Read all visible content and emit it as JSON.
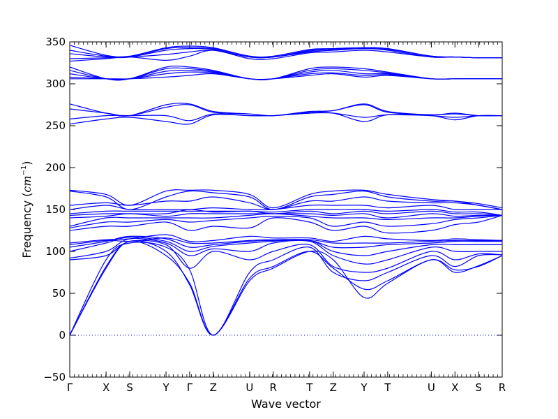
{
  "chart_data": {
    "type": "line",
    "xlabel": "Wave vector",
    "ylabel": {
      "text": "Frequency (",
      "unit": "cm",
      "sup": "−1",
      "close": ")"
    },
    "ylim": [
      -50,
      350
    ],
    "yticks": [
      -50,
      0,
      50,
      100,
      150,
      200,
      250,
      300,
      350
    ],
    "series_color": "#0000ff",
    "zero_line": {
      "y": 0,
      "style": "dotted"
    },
    "kpoints": [
      {
        "label": "Γ",
        "x": 0
      },
      {
        "label": "X",
        "x": 1
      },
      {
        "label": "S",
        "x": 1.65
      },
      {
        "label": "Y",
        "x": 2.65
      },
      {
        "label": "Γ",
        "x": 3.3
      },
      {
        "label": "Z",
        "x": 3.95
      },
      {
        "label": "U",
        "x": 4.95
      },
      {
        "label": "R",
        "x": 5.6
      },
      {
        "label": "T",
        "x": 6.6
      },
      {
        "label": "Z",
        "x": 7.25
      },
      {
        "label": "Y",
        "x": 8.1
      },
      {
        "label": "T",
        "x": 8.75
      },
      {
        "label": "U",
        "x": 9.95
      },
      {
        "label": "X",
        "x": 10.6
      },
      {
        "label": "S",
        "x": 11.25
      },
      {
        "label": "R",
        "x": 11.9
      }
    ],
    "bands": [
      {
        "values": [
          0,
          80,
          112,
          95,
          62,
          0,
          65,
          80,
          100,
          90,
          45,
          62,
          90,
          75,
          83,
          95
        ]
      },
      {
        "values": [
          0,
          82,
          112,
          100,
          60,
          0,
          68,
          82,
          100,
          80,
          55,
          65,
          90,
          78,
          82,
          95
        ]
      },
      {
        "values": [
          0,
          90,
          110,
          105,
          78,
          0,
          75,
          90,
          105,
          75,
          65,
          75,
          95,
          82,
          95,
          96
        ]
      },
      {
        "values": [
          90,
          95,
          112,
          108,
          80,
          100,
          90,
          100,
          108,
          82,
          75,
          80,
          100,
          90,
          97,
          96
        ]
      },
      {
        "values": [
          92,
          100,
          115,
          110,
          95,
          103,
          100,
          110,
          112,
          95,
          85,
          90,
          105,
          100,
          100,
          100
        ]
      },
      {
        "values": [
          100,
          110,
          117,
          112,
          100,
          106,
          110,
          112,
          113,
          100,
          95,
          100,
          108,
          108,
          108,
          108
        ]
      },
      {
        "values": [
          105,
          112,
          118,
          115,
          105,
          108,
          112,
          113,
          113,
          105,
          105,
          108,
          110,
          112,
          112,
          112
        ]
      },
      {
        "values": [
          108,
          113,
          112,
          116,
          110,
          110,
          113,
          114,
          114,
          110,
          110,
          110,
          112,
          113,
          113,
          113
        ]
      },
      {
        "values": [
          110,
          114,
          115,
          120,
          112,
          113,
          118,
          116,
          116,
          112,
          118,
          115,
          113,
          115,
          114,
          113
        ]
      },
      {
        "values": [
          125,
          130,
          130,
          135,
          125,
          130,
          128,
          140,
          135,
          125,
          130,
          122,
          125,
          132,
          135,
          143
        ]
      },
      {
        "values": [
          128,
          135,
          135,
          138,
          135,
          137,
          140,
          142,
          140,
          130,
          135,
          130,
          133,
          138,
          140,
          143
        ]
      },
      {
        "values": [
          130,
          140,
          140,
          140,
          140,
          140,
          143,
          145,
          142,
          140,
          140,
          138,
          140,
          140,
          142,
          143
        ]
      },
      {
        "values": [
          140,
          142,
          145,
          142,
          145,
          145,
          145,
          145,
          145,
          143,
          145,
          140,
          145,
          142,
          143,
          143
        ]
      },
      {
        "values": [
          143,
          145,
          145,
          145,
          150,
          147,
          148,
          145,
          148,
          145,
          148,
          145,
          148,
          145,
          145,
          143
        ]
      },
      {
        "values": [
          145,
          148,
          148,
          148,
          148,
          148,
          148,
          147,
          150,
          150,
          150,
          148,
          150,
          147,
          147,
          143
        ]
      },
      {
        "values": [
          150,
          155,
          150,
          150,
          150,
          152,
          150,
          150,
          155,
          155,
          155,
          152,
          155,
          150,
          150,
          150
        ]
      },
      {
        "values": [
          155,
          158,
          155,
          160,
          160,
          165,
          158,
          150,
          160,
          160,
          165,
          160,
          158,
          158,
          155,
          150
        ]
      },
      {
        "values": [
          172,
          165,
          150,
          165,
          172,
          170,
          165,
          150,
          165,
          168,
          172,
          165,
          160,
          160,
          155,
          150
        ]
      },
      {
        "values": [
          173,
          168,
          155,
          172,
          173,
          173,
          168,
          152,
          168,
          172,
          173,
          168,
          162,
          160,
          157,
          152
        ]
      },
      {
        "values": [
          252,
          258,
          260,
          255,
          252,
          263,
          262,
          262,
          265,
          265,
          255,
          263,
          262,
          257,
          262,
          262
        ]
      },
      {
        "values": [
          258,
          262,
          262,
          262,
          256,
          264,
          262,
          262,
          265,
          265,
          260,
          263,
          262,
          260,
          262,
          262
        ]
      },
      {
        "values": [
          270,
          265,
          262,
          272,
          275,
          266,
          264,
          262,
          266,
          268,
          275,
          266,
          263,
          264,
          262,
          262
        ]
      },
      {
        "values": [
          276,
          265,
          262,
          275,
          276,
          267,
          264,
          262,
          267,
          268,
          276,
          267,
          263,
          265,
          262,
          262
        ]
      },
      {
        "values": [
          306,
          306,
          306,
          308,
          310,
          312,
          306,
          306,
          310,
          312,
          308,
          310,
          306,
          306,
          306,
          306
        ]
      },
      {
        "values": [
          308,
          306,
          306,
          312,
          314,
          313,
          306,
          306,
          312,
          313,
          310,
          311,
          306,
          306,
          306,
          306
        ]
      },
      {
        "values": [
          312,
          306,
          306,
          315,
          316,
          314,
          306,
          306,
          314,
          316,
          312,
          312,
          306,
          306,
          306,
          306
        ]
      },
      {
        "values": [
          316,
          306,
          306,
          318,
          318,
          315,
          306,
          306,
          316,
          318,
          316,
          313,
          306,
          306,
          306,
          306
        ]
      },
      {
        "values": [
          320,
          306,
          306,
          320,
          320,
          316,
          306,
          306,
          318,
          320,
          318,
          314,
          306,
          306,
          306,
          306
        ]
      },
      {
        "values": [
          327,
          330,
          332,
          328,
          333,
          340,
          330,
          330,
          337,
          338,
          340,
          338,
          332,
          332,
          331,
          331
        ]
      },
      {
        "values": [
          330,
          331,
          332,
          335,
          338,
          340,
          332,
          332,
          338,
          340,
          342,
          340,
          332,
          332,
          331,
          331
        ]
      },
      {
        "values": [
          336,
          332,
          332,
          340,
          342,
          341,
          332,
          332,
          339,
          341,
          342,
          341,
          333,
          332,
          331,
          331
        ]
      },
      {
        "values": [
          340,
          333,
          332,
          342,
          343,
          342,
          333,
          332,
          340,
          342,
          343,
          342,
          333,
          332,
          331,
          331
        ]
      },
      {
        "values": [
          346,
          334,
          333,
          343,
          345,
          343,
          333,
          333,
          341,
          342,
          343,
          342,
          333,
          332,
          331,
          331
        ]
      }
    ]
  }
}
